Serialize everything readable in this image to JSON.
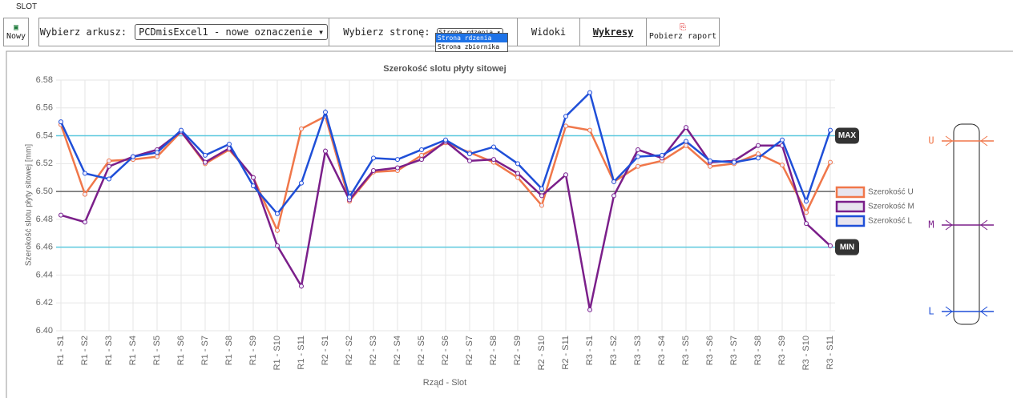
{
  "window_title": "SLOT",
  "toolbar": {
    "new": "Nowy",
    "sheet_label": "Wybierz arkusz:",
    "sheet_value": "PCDmisExcel1 - nowe oznaczenie",
    "side_label": "Wybierz stronę:",
    "side_value": "Strona rdzenia",
    "side_options": [
      "Strona rdzenia",
      "Strona zbiornika"
    ],
    "views": "Widoki",
    "charts": "Wykresy",
    "report": "Pobierz raport"
  },
  "diagram": {
    "labels": [
      "U",
      "M",
      "L"
    ]
  },
  "chart_data": {
    "type": "line",
    "title": "Szerokość slotu płyty sitowej",
    "x_label": "Rząd - Slot",
    "y_label": "Szerokość slotu płyty sitowej [mm]",
    "categories": [
      "R1 - S1",
      "R1 - S2",
      "R1 - S3",
      "R1 - S4",
      "R1 - S5",
      "R1 - S6",
      "R1 - S7",
      "R1 - S8",
      "R1 - S9",
      "R1 - S10",
      "R1 - S11",
      "R2 - S1",
      "R2 - S2",
      "R2 - S3",
      "R2 - S4",
      "R2 - S5",
      "R2 - S6",
      "R2 - S7",
      "R2 - S8",
      "R2 - S9",
      "R2 - S10",
      "R2 - S11",
      "R3 - S1",
      "R3 - S2",
      "R3 - S3",
      "R3 - S4",
      "R3 - S5",
      "R3 - S6",
      "R3 - S7",
      "R3 - S8",
      "R3 - S9",
      "R3 - S10",
      "R3 - S11"
    ],
    "series": [
      {
        "name": "Szerokość U",
        "color": "#f0774a",
        "values": [
          6.548,
          6.498,
          6.522,
          6.523,
          6.525,
          6.543,
          6.52,
          6.53,
          6.51,
          6.472,
          6.545,
          6.554,
          6.493,
          6.514,
          6.515,
          6.526,
          6.535,
          6.528,
          6.521,
          6.51,
          6.49,
          6.547,
          6.544,
          6.507,
          6.518,
          6.522,
          6.533,
          6.518,
          6.52,
          6.527,
          6.519,
          6.485,
          6.521
        ]
      },
      {
        "name": "Szerokość M",
        "color": "#7b1f8a",
        "values": [
          6.483,
          6.478,
          6.518,
          6.525,
          6.53,
          6.543,
          6.521,
          6.531,
          6.51,
          6.461,
          6.432,
          6.529,
          6.494,
          6.515,
          6.517,
          6.523,
          6.536,
          6.522,
          6.523,
          6.513,
          6.497,
          6.512,
          6.415,
          6.497,
          6.53,
          6.524,
          6.546,
          6.521,
          6.522,
          6.533,
          6.533,
          6.477,
          6.461
        ]
      },
      {
        "name": "Szerokość L",
        "color": "#1f4fd8",
        "values": [
          6.55,
          6.513,
          6.509,
          6.525,
          6.528,
          6.544,
          6.526,
          6.534,
          6.504,
          6.484,
          6.506,
          6.557,
          6.496,
          6.524,
          6.523,
          6.53,
          6.537,
          6.527,
          6.532,
          6.52,
          6.502,
          6.554,
          6.571,
          6.507,
          6.525,
          6.526,
          6.536,
          6.522,
          6.521,
          6.524,
          6.537,
          6.493,
          6.544
        ]
      }
    ],
    "ylim": [
      6.4,
      6.58
    ],
    "yticks": [
      {
        "value": 6.4,
        "label": "6.40"
      },
      6.42,
      6.44,
      6.46,
      6.48,
      {
        "value": 6.5,
        "label": "6.50"
      },
      6.52,
      6.54,
      6.56,
      6.58
    ],
    "grid": true,
    "legend": "right",
    "reference_lines": [
      {
        "value": 6.54,
        "label": "MAX",
        "color": "#5bc8de"
      },
      {
        "value": 6.46,
        "label": "MIN",
        "color": "#5bc8de"
      },
      {
        "value": 6.5,
        "color": "#666666"
      }
    ]
  }
}
